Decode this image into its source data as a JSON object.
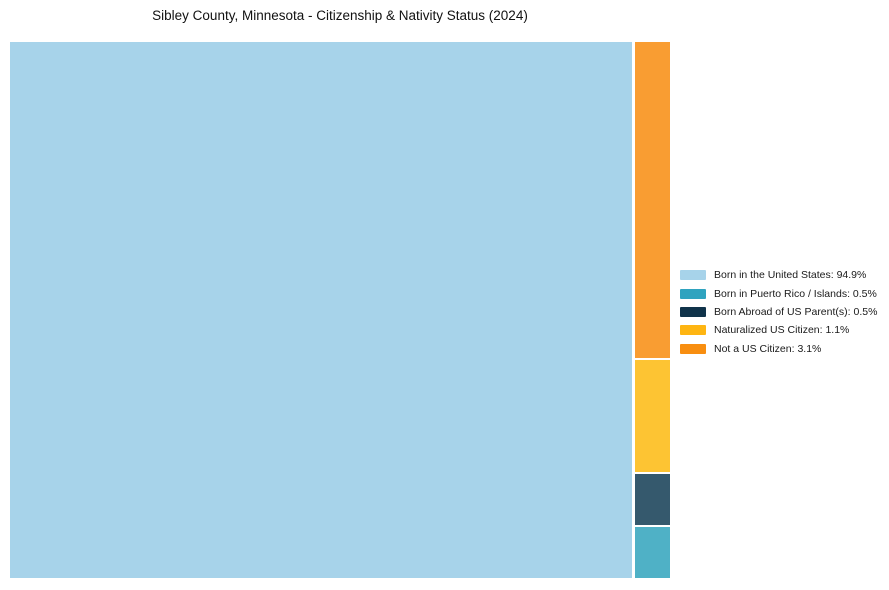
{
  "chart_data": {
    "type": "treemap",
    "title": "Sibley County, Minnesota - Citizenship & Nativity Status (2024)",
    "categories": [
      "Born in the United States",
      "Born in Puerto Rico / Islands",
      "Born Abroad of US Parent(s)",
      "Naturalized US Citizen",
      "Not a US Citizen"
    ],
    "values": [
      94.9,
      0.5,
      0.5,
      1.1,
      3.1
    ],
    "unit": "%",
    "tile_colors": [
      "#a7d3ea",
      "#4fb1c6",
      "#35596d",
      "#fdc433",
      "#f99d32"
    ],
    "legend_swatch_colors": [
      "#a7d3ea",
      "#2fa3bf",
      "#10334a",
      "#feb512",
      "#f88e10"
    ],
    "column_order_top_to_bottom": [
      "Not a US Citizen",
      "Naturalized US Citizen",
      "Born Abroad of US Parent(s)",
      "Born in Puerto Rico / Islands"
    ],
    "legend_position": "right",
    "background": "#ffffff"
  },
  "legend": {
    "entries": [
      {
        "label": "Born in the United States: 94.9%"
      },
      {
        "label": "Born in Puerto Rico / Islands: 0.5%"
      },
      {
        "label": "Born Abroad of US Parent(s): 0.5%"
      },
      {
        "label": "Naturalized US Citizen: 1.1%"
      },
      {
        "label": "Not a US Citizen: 3.1%"
      }
    ]
  }
}
